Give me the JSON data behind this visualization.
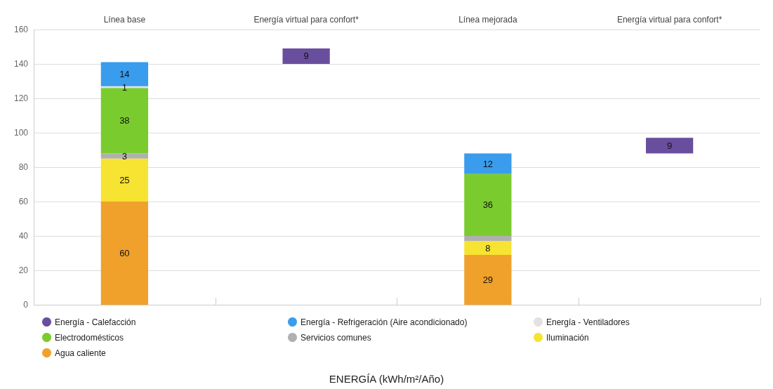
{
  "chart_data": {
    "type": "bar",
    "stacked": true,
    "annotations": [
      "ENERGÍA (kWh/m²/Año)"
    ],
    "categories": [
      "Línea base",
      "Energía virtual para confort*",
      "Línea mejorada",
      "Energía virtual para confort*"
    ],
    "ylim": [
      0,
      160
    ],
    "yticks": [
      0,
      20,
      40,
      60,
      80,
      100,
      120,
      140,
      160
    ],
    "grid": "y",
    "legend": "bottom",
    "series": [
      {
        "name": "Agua caliente",
        "color": "#f0a12c",
        "values": [
          60,
          null,
          29,
          null
        ],
        "value_labels": [
          "60",
          null,
          "29",
          null
        ]
      },
      {
        "name": "Iluminación",
        "color": "#f7e331",
        "values": [
          25,
          null,
          8,
          null
        ],
        "value_labels": [
          "25",
          null,
          "8",
          null
        ]
      },
      {
        "name": "Servicios comunes",
        "color": "#b0b0b0",
        "values": [
          3,
          null,
          3,
          null
        ],
        "value_labels": [
          "3",
          null,
          null,
          null
        ]
      },
      {
        "name": "Electrodomésticos",
        "color": "#7acc2e",
        "values": [
          38,
          null,
          36,
          null
        ],
        "value_labels": [
          "38",
          null,
          "36",
          null
        ]
      },
      {
        "name": "Energía - Ventiladores",
        "color": "#e2e2e2",
        "values": [
          1,
          null,
          null,
          null
        ],
        "value_labels": [
          "1",
          null,
          null,
          null
        ]
      },
      {
        "name": "Energía - Refrigeración (Aire acondicionado)",
        "color": "#3a9cec",
        "values": [
          14,
          null,
          12,
          null
        ],
        "value_labels": [
          "14",
          null,
          "12",
          null
        ]
      },
      {
        "name": "Energía - Calefacción",
        "color": "#6a4e9e",
        "values": [
          null,
          9,
          null,
          9
        ],
        "base": [
          null,
          140,
          null,
          88
        ],
        "value_labels": [
          null,
          "9",
          null,
          "9"
        ]
      }
    ]
  }
}
